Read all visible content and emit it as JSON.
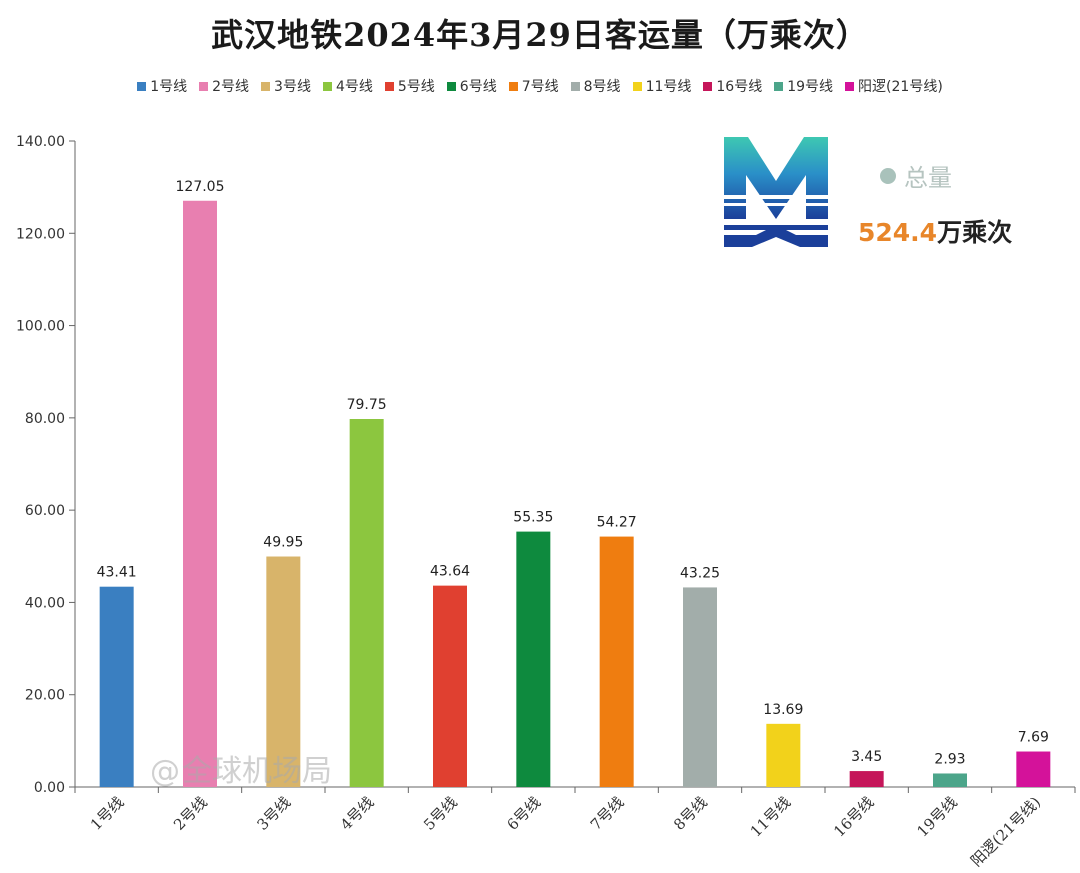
{
  "chart_data": {
    "type": "bar",
    "title": "武汉地铁2024年3月29日客运量（万乘次）",
    "xlabel": "",
    "ylabel": "",
    "ylim": [
      0,
      140
    ],
    "yticks": [
      "0.00",
      "20.00",
      "40.00",
      "60.00",
      "80.00",
      "100.00",
      "120.00",
      "140.00"
    ],
    "categories": [
      "1号线",
      "2号线",
      "3号线",
      "4号线",
      "5号线",
      "6号线",
      "7号线",
      "8号线",
      "11号线",
      "16号线",
      "19号线",
      "阳逻(21号线)"
    ],
    "values": [
      43.41,
      127.05,
      49.95,
      79.75,
      43.64,
      55.35,
      54.27,
      43.25,
      13.69,
      3.45,
      2.93,
      7.69
    ],
    "value_labels": [
      "43.41",
      "127.05",
      "49.95",
      "79.75",
      "43.64",
      "55.35",
      "54.27",
      "43.25",
      "13.69",
      "3.45",
      "2.93",
      "7.69"
    ],
    "colors": [
      "#3a7fc1",
      "#e87fb0",
      "#d8b46a",
      "#8cc63f",
      "#e04030",
      "#0e8a3e",
      "#ef7d10",
      "#a2adaa",
      "#f2d21b",
      "#c5165a",
      "#4ca58a",
      "#d4129a"
    ],
    "legend": [
      "1号线",
      "2号线",
      "3号线",
      "4号线",
      "5号线",
      "6号线",
      "7号线",
      "8号线",
      "11号线",
      "16号线",
      "19号线",
      "阳逻(21号线)"
    ],
    "legend_position": "top",
    "grid": false
  },
  "total": {
    "label": "总量",
    "value": "524.4",
    "unit": "万乘次"
  },
  "logo": {
    "icon": "wuhan-metro-logo-icon"
  },
  "watermark": {
    "at": "@",
    "text": "全球机场局"
  }
}
